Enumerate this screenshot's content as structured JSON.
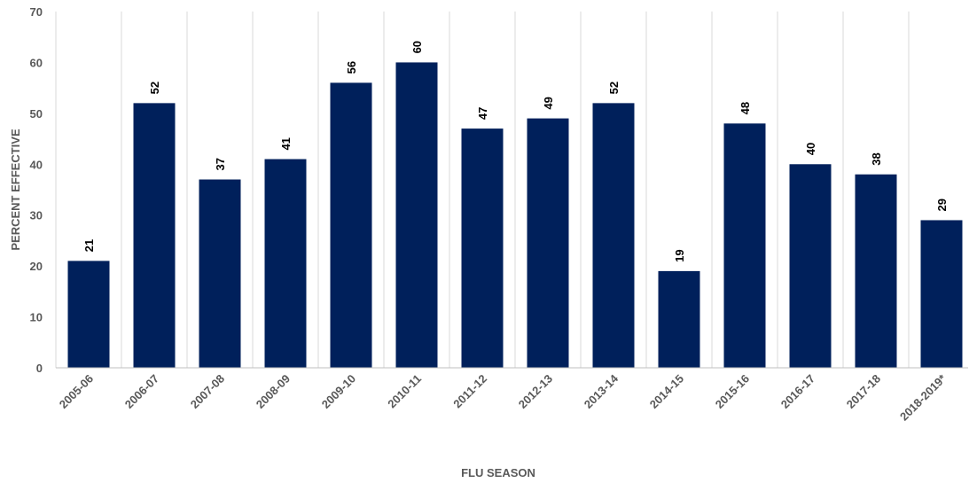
{
  "chart_data": {
    "type": "bar",
    "title": "",
    "xlabel": "FLU SEASON",
    "ylabel": "PERCENT EFFECTIVE",
    "ylim": [
      0,
      70
    ],
    "yticks": [
      0,
      10,
      20,
      30,
      40,
      50,
      60,
      70
    ],
    "grid": "vertical-category-lines",
    "bar_color": "#00205b",
    "categories": [
      "2005-06",
      "2006-07",
      "2007-08",
      "2008-09",
      "2009-10",
      "2010-11",
      "2011-12",
      "2012-13",
      "2013-14",
      "2014-15",
      "2015-16",
      "2016-17",
      "2017-18",
      "2018-2019*"
    ],
    "values": [
      21,
      52,
      37,
      41,
      56,
      60,
      47,
      49,
      52,
      19,
      48,
      40,
      38,
      29
    ]
  }
}
